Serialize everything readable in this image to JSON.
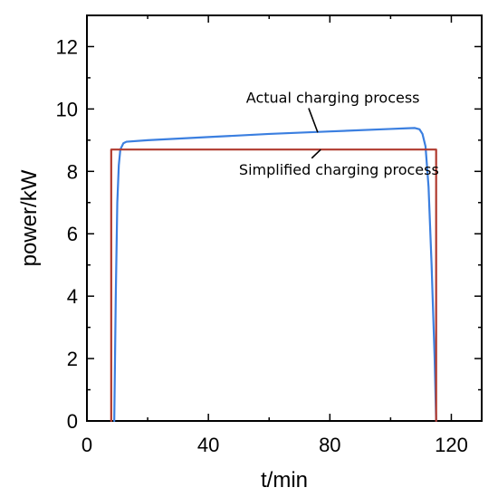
{
  "chart_data": {
    "type": "line",
    "title": "",
    "xlabel": "t/min",
    "ylabel": "power/kW",
    "xlim": [
      0,
      130
    ],
    "ylim": [
      0,
      13
    ],
    "xticks": [
      0,
      40,
      80,
      120
    ],
    "yticks": [
      0,
      2,
      4,
      6,
      8,
      10,
      12
    ],
    "grid": false,
    "legend": "none",
    "series": [
      {
        "color": "#3b7fe0",
        "x": [
          9,
          9.5,
          10,
          10.5,
          11,
          12,
          13,
          20,
          40,
          60,
          80,
          100,
          105,
          108,
          109.5,
          110.5,
          111.5,
          112.5,
          113.5,
          114.5,
          115
        ],
        "y": [
          0,
          4,
          7,
          8.2,
          8.7,
          8.9,
          8.95,
          9.0,
          9.1,
          9.2,
          9.28,
          9.36,
          9.38,
          9.39,
          9.35,
          9.2,
          8.8,
          7.5,
          5,
          2,
          0
        ]
      },
      {
        "color": "#b03a2e",
        "x": [
          8,
          8,
          115,
          115
        ],
        "y": [
          0,
          8.7,
          8.7,
          0
        ]
      }
    ],
    "annotations": [
      {
        "text": "Actual charging process",
        "x": 81,
        "y": 10.2,
        "arrow_to": [
          76,
          9.25
        ]
      },
      {
        "text": "Simplified charging process",
        "x": 83,
        "y": 7.9,
        "arrow_to": [
          77,
          8.7
        ]
      }
    ]
  }
}
